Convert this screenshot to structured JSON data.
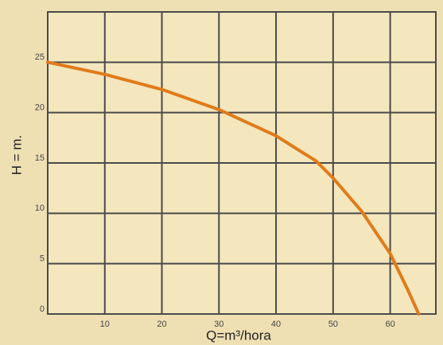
{
  "chart_data": {
    "type": "line",
    "xlabel": "Q=m³/hora",
    "ylabel": "H = m.",
    "series": [
      {
        "color": "#e07b1a",
        "x": [
          0,
          10,
          20,
          30,
          40,
          47,
          50,
          55,
          60,
          63,
          65
        ],
        "values": [
          25,
          23.8,
          22.3,
          20.3,
          17.7,
          15.2,
          13.5,
          10.2,
          6,
          2.5,
          0
        ]
      }
    ],
    "xlim": [
      0,
      68
    ],
    "ylim": [
      0,
      30
    ],
    "xticks": [
      10,
      20,
      30,
      40,
      50,
      60
    ],
    "yticks": [
      0,
      5,
      10,
      15,
      20,
      25
    ],
    "grid": true
  }
}
